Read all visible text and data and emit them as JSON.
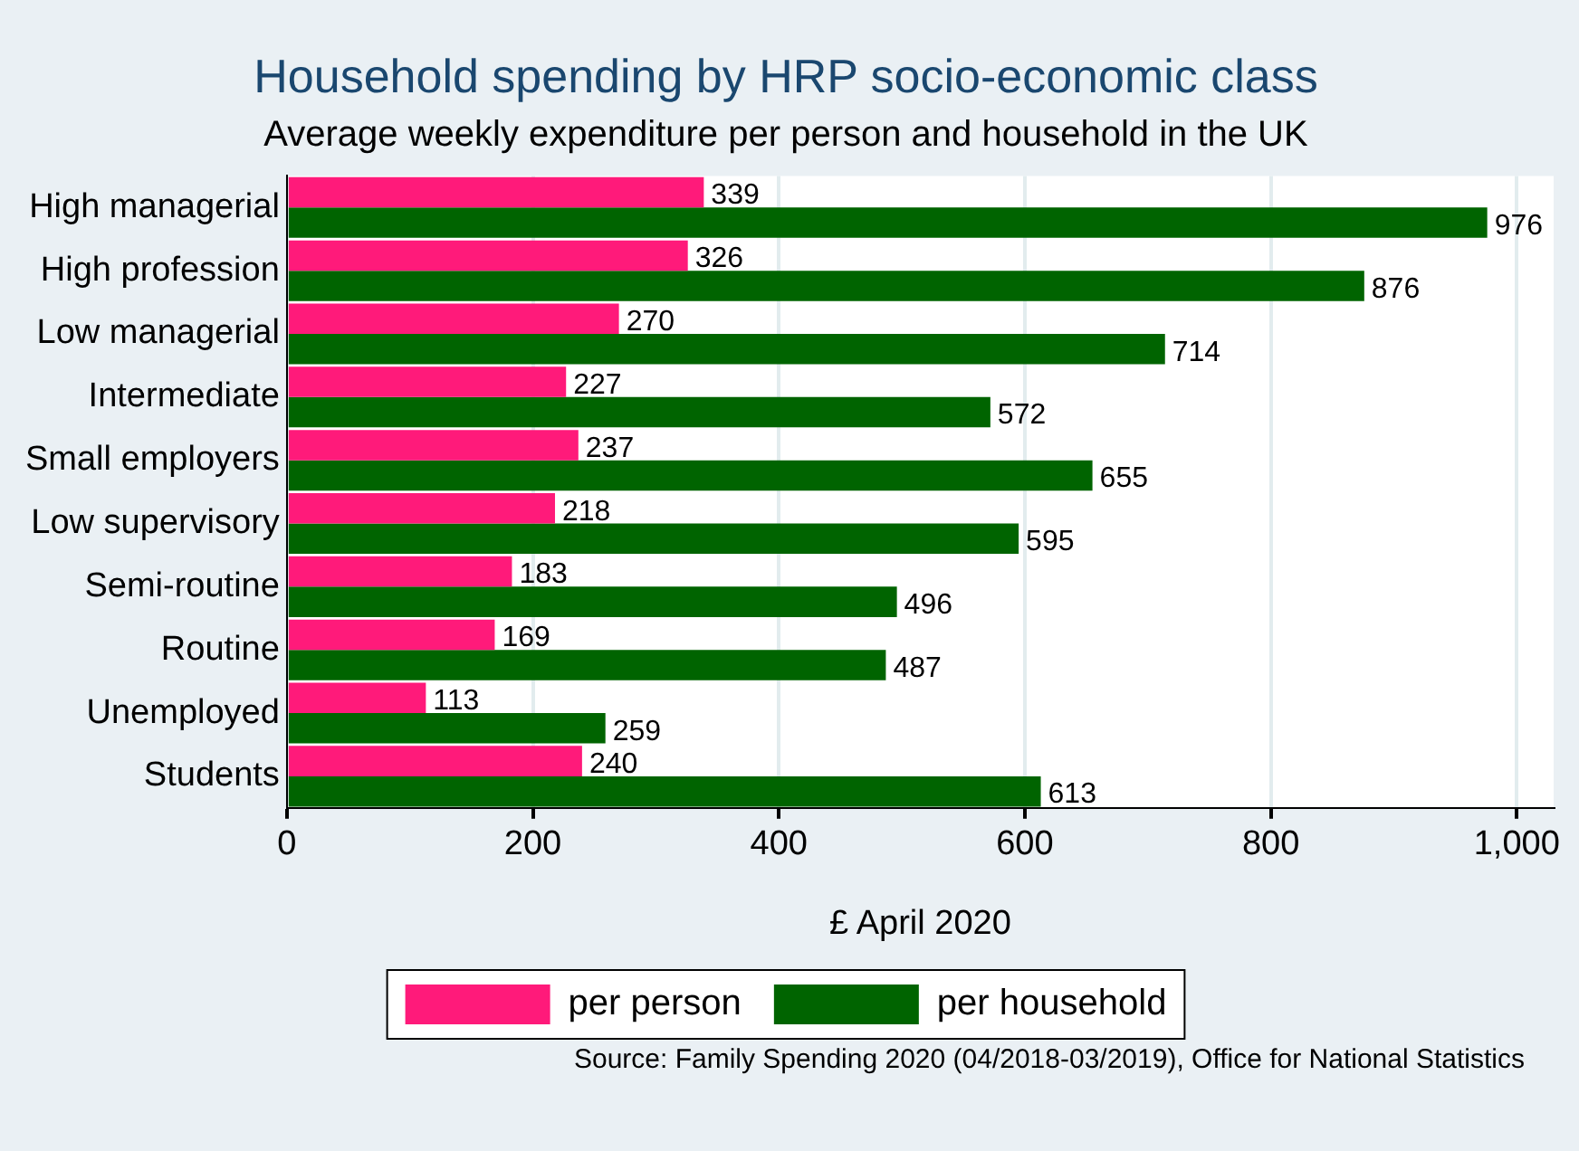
{
  "chart_data": {
    "type": "bar",
    "orientation": "horizontal",
    "title": "Household spending by HRP socio-economic class",
    "subtitle": "Average weekly expenditure per person and household in the UK",
    "xlabel": "£ April 2020",
    "categories": [
      "High managerial",
      "High profession",
      "Low managerial",
      "Intermediate",
      "Small employers",
      "Low supervisory",
      "Semi-routine",
      "Routine",
      "Unemployed",
      "Students"
    ],
    "series": [
      {
        "name": "per person",
        "color": "#ff1a7a",
        "values": [
          339,
          326,
          270,
          227,
          237,
          218,
          183,
          169,
          113,
          240
        ]
      },
      {
        "name": "per household",
        "color": "#006400",
        "values": [
          976,
          876,
          714,
          572,
          655,
          595,
          496,
          487,
          259,
          613
        ]
      }
    ],
    "xlim": [
      0,
      1030
    ],
    "xticks": [
      0,
      200,
      400,
      600,
      800,
      {
        "value": 1000,
        "label": "1,000"
      }
    ],
    "grid": "x",
    "legend": "bottom",
    "data_labels": true,
    "annotations": [
      "Source: Family Spending 2020 (04/2018-03/2019), Office for National Statistics"
    ]
  }
}
